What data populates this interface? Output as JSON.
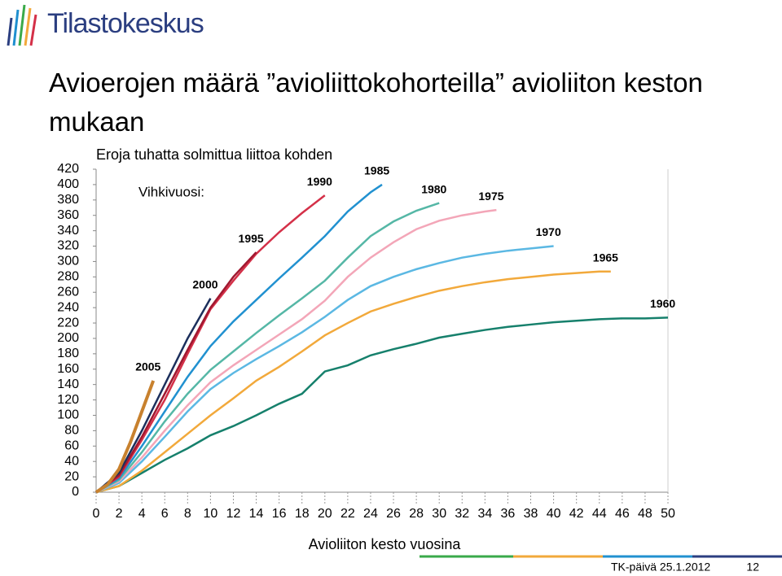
{
  "logo": "Tilastokeskus",
  "title": "Avioerojen määrä ”avioliittokohorteilla” avioliiton keston mukaan",
  "chart_data": {
    "type": "line",
    "title": "Eroja tuhatta solmittua liittoa kohden",
    "annotation": "Vihkivuosi:",
    "x_label": "Avioliiton kesto vuosina",
    "xlim": [
      0,
      50
    ],
    "xticks": [
      0,
      2,
      4,
      6,
      8,
      10,
      12,
      14,
      16,
      18,
      20,
      22,
      24,
      26,
      28,
      30,
      32,
      34,
      36,
      38,
      40,
      42,
      44,
      46,
      48,
      50
    ],
    "ylim": [
      0,
      420
    ],
    "yticks": [
      0,
      20,
      40,
      60,
      80,
      100,
      120,
      140,
      160,
      180,
      200,
      220,
      240,
      260,
      280,
      300,
      320,
      340,
      360,
      380,
      400,
      420
    ],
    "series": [
      {
        "name": "1960",
        "color": "#16806c",
        "x": [
          0,
          2,
          4,
          6,
          8,
          10,
          12,
          14,
          16,
          18,
          20,
          22,
          24,
          26,
          28,
          30,
          32,
          34,
          36,
          38,
          40,
          42,
          44,
          46,
          48,
          50
        ],
        "values": [
          0,
          8,
          25,
          42,
          57,
          74,
          86,
          100,
          115,
          128,
          157,
          165,
          178,
          186,
          193,
          201,
          206,
          211,
          215,
          218,
          221,
          223,
          225,
          226,
          226,
          227
        ]
      },
      {
        "name": "1965",
        "color": "#f2a93b",
        "x": [
          0,
          2,
          4,
          6,
          8,
          10,
          12,
          14,
          16,
          18,
          20,
          22,
          24,
          26,
          28,
          30,
          32,
          34,
          36,
          38,
          40,
          42,
          44,
          45
        ],
        "values": [
          0,
          8,
          28,
          52,
          76,
          100,
          122,
          145,
          163,
          183,
          204,
          220,
          235,
          245,
          254,
          262,
          268,
          273,
          277,
          280,
          283,
          285,
          287,
          287
        ]
      },
      {
        "name": "1970",
        "color": "#5bb8e3",
        "x": [
          0,
          2,
          4,
          6,
          8,
          10,
          12,
          14,
          16,
          18,
          20,
          22,
          24,
          26,
          28,
          30,
          32,
          34,
          36,
          38,
          40
        ],
        "values": [
          0,
          12,
          40,
          72,
          105,
          134,
          155,
          173,
          190,
          208,
          228,
          250,
          268,
          280,
          290,
          298,
          305,
          310,
          314,
          317,
          320
        ]
      },
      {
        "name": "1975",
        "color": "#f3a6b8",
        "x": [
          0,
          2,
          4,
          6,
          8,
          10,
          12,
          14,
          16,
          18,
          20,
          22,
          24,
          26,
          28,
          30,
          32,
          34,
          35
        ],
        "values": [
          0,
          14,
          45,
          80,
          113,
          143,
          165,
          185,
          205,
          225,
          249,
          280,
          305,
          325,
          342,
          353,
          360,
          365,
          367
        ]
      },
      {
        "name": "1980",
        "color": "#55b7a6",
        "x": [
          0,
          2,
          4,
          6,
          8,
          10,
          12,
          14,
          16,
          18,
          20,
          22,
          24,
          26,
          28,
          30
        ],
        "values": [
          0,
          16,
          52,
          92,
          128,
          159,
          183,
          207,
          230,
          252,
          275,
          305,
          333,
          352,
          366,
          376
        ]
      },
      {
        "name": "1985",
        "color": "#2191d0",
        "x": [
          0,
          2,
          4,
          6,
          8,
          10,
          12,
          14,
          16,
          18,
          20,
          22,
          24,
          25
        ],
        "values": [
          0,
          18,
          60,
          105,
          150,
          190,
          222,
          250,
          278,
          305,
          333,
          365,
          390,
          400
        ]
      },
      {
        "name": "1990",
        "color": "#d43048",
        "x": [
          0,
          2,
          4,
          6,
          8,
          10,
          12,
          14,
          16,
          18,
          20
        ],
        "values": [
          0,
          20,
          68,
          120,
          180,
          238,
          275,
          310,
          338,
          363,
          386
        ]
      },
      {
        "name": "1995",
        "color": "#a01830",
        "x": [
          0,
          2,
          4,
          6,
          8,
          10,
          12,
          14
        ],
        "values": [
          0,
          22,
          72,
          128,
          185,
          240,
          280,
          312
        ]
      },
      {
        "name": "2000",
        "color": "#1c2f5c",
        "x": [
          0,
          2,
          4,
          6,
          8,
          10
        ],
        "values": [
          0,
          25,
          80,
          140,
          200,
          252
        ]
      },
      {
        "name": "2005",
        "color": "#c8812e",
        "x": [
          0,
          1,
          2,
          3,
          4,
          5
        ],
        "values": [
          0,
          10,
          30,
          65,
          105,
          145
        ]
      }
    ]
  },
  "footer": {
    "date": "TK-päivä 25.1.2012",
    "page": "12"
  }
}
